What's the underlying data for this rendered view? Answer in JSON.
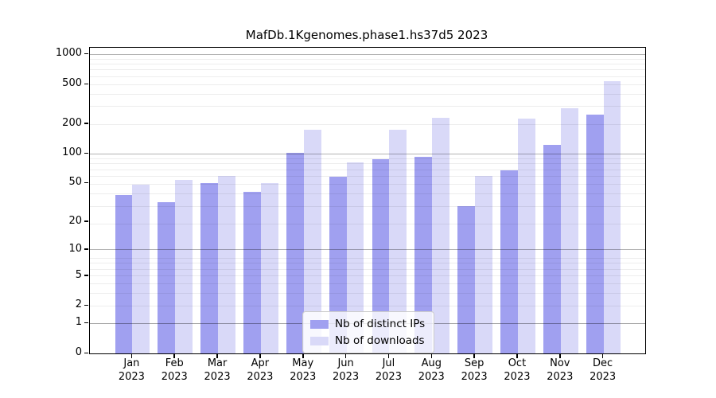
{
  "chart_data": {
    "type": "bar",
    "title": "MafDb.1Kgenomes.phase1.hs37d5 2023",
    "categories": [
      "Jan",
      "Feb",
      "Mar",
      "Apr",
      "May",
      "Jun",
      "Jul",
      "Aug",
      "Sep",
      "Oct",
      "Nov",
      "Dec"
    ],
    "category_year": "2023",
    "series": [
      {
        "name": "Nb of distinct IPs",
        "color": "#a0a0f0",
        "values": [
          38,
          32,
          50,
          41,
          102,
          58,
          88,
          93,
          29,
          68,
          122,
          250
        ]
      },
      {
        "name": "Nb of downloads",
        "color": "#d9d9f8",
        "values": [
          48,
          54,
          60,
          50,
          176,
          82,
          175,
          232,
          59,
          228,
          290,
          540
        ]
      }
    ],
    "xlabel": "",
    "ylabel": "",
    "yscale": "log1p",
    "yticks": [
      0,
      1,
      2,
      5,
      10,
      20,
      50,
      100,
      200,
      500,
      1000
    ],
    "ylim": [
      0,
      1170
    ],
    "grid": true,
    "grid_major_values": [
      1,
      10,
      100,
      1000
    ],
    "legend_position": "bottom-center",
    "colors": {
      "axis": "#000000",
      "grid_major": "#b3b3b3",
      "grid_minor": "#ededed",
      "legend_border": "#cccccc"
    }
  }
}
